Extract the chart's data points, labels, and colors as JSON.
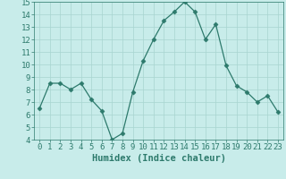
{
  "x": [
    0,
    1,
    2,
    3,
    4,
    5,
    6,
    7,
    8,
    9,
    10,
    11,
    12,
    13,
    14,
    15,
    16,
    17,
    18,
    19,
    20,
    21,
    22,
    23
  ],
  "y": [
    6.5,
    8.5,
    8.5,
    8.0,
    8.5,
    7.2,
    6.3,
    4.0,
    4.5,
    7.8,
    10.3,
    12.0,
    13.5,
    14.2,
    15.0,
    14.2,
    12.0,
    13.2,
    9.9,
    8.3,
    7.8,
    7.0,
    7.5,
    6.2
  ],
  "xlabel": "Humidex (Indice chaleur)",
  "ylim": [
    4,
    15
  ],
  "xlim_min": -0.5,
  "xlim_max": 23.5,
  "yticks": [
    4,
    5,
    6,
    7,
    8,
    9,
    10,
    11,
    12,
    13,
    14,
    15
  ],
  "xticks": [
    0,
    1,
    2,
    3,
    4,
    5,
    6,
    7,
    8,
    9,
    10,
    11,
    12,
    13,
    14,
    15,
    16,
    17,
    18,
    19,
    20,
    21,
    22,
    23
  ],
  "line_color": "#2d7a6c",
  "marker": "D",
  "marker_size": 2.5,
  "bg_color": "#c8ecea",
  "grid_color": "#a8d5d0",
  "tick_color": "#2d7a6c",
  "label_color": "#2d7a6c",
  "xlabel_fontsize": 7.5,
  "tick_fontsize": 6.5
}
